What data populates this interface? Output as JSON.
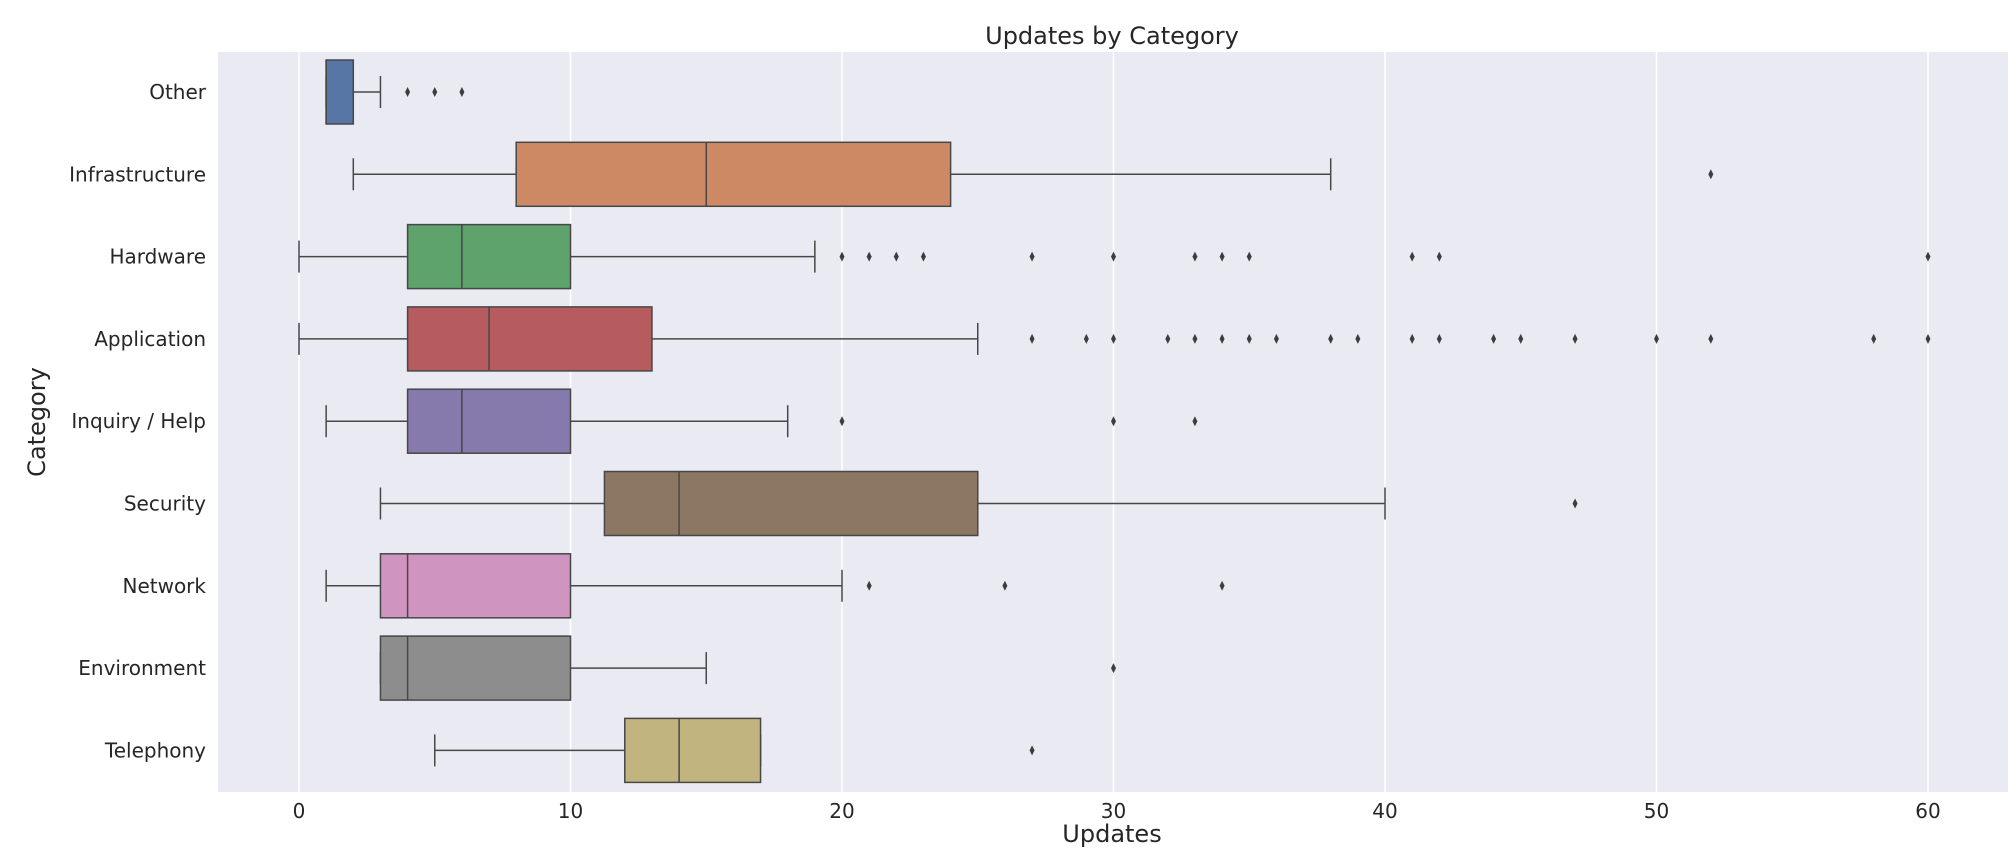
{
  "chart_data": {
    "type": "box",
    "orientation": "horizontal",
    "title": "Updates by Category",
    "xlabel": "Updates",
    "ylabel": "Category",
    "xlim": [
      -3,
      63
    ],
    "xticks": [
      0,
      10,
      20,
      30,
      40,
      50,
      60
    ],
    "grid": "vertical",
    "categories": [
      {
        "name": "Other",
        "color": "#5876a5",
        "whislo": 1,
        "q1": 1,
        "med": 1,
        "q3": 2,
        "whishi": 3,
        "fliers": [
          4,
          5,
          6
        ]
      },
      {
        "name": "Infrastructure",
        "color": "#cc8963",
        "whislo": 2,
        "q1": 8,
        "med": 15,
        "q3": 24,
        "whishi": 38,
        "fliers": [
          52
        ]
      },
      {
        "name": "Hardware",
        "color": "#5ea26c",
        "whislo": 0,
        "q1": 4,
        "med": 6,
        "q3": 10,
        "whishi": 19,
        "fliers": [
          20,
          21,
          22,
          23,
          27,
          30,
          33,
          34,
          35,
          41,
          42,
          60
        ]
      },
      {
        "name": "Application",
        "color": "#b65c5f",
        "whislo": 0,
        "q1": 4,
        "med": 7,
        "q3": 13,
        "whishi": 25,
        "fliers": [
          27,
          29,
          30,
          32,
          33,
          34,
          35,
          36,
          38,
          39,
          41,
          42,
          44,
          45,
          47,
          50,
          52,
          58,
          60
        ]
      },
      {
        "name": "Inquiry / Help",
        "color": "#857aab",
        "whislo": 1,
        "q1": 4,
        "med": 6,
        "q3": 10,
        "whishi": 18,
        "fliers": [
          20,
          30,
          33
        ]
      },
      {
        "name": "Security",
        "color": "#8c7763",
        "whislo": 3,
        "q1": 11.25,
        "med": 14,
        "q3": 25,
        "whishi": 40,
        "fliers": [
          47
        ]
      },
      {
        "name": "Network",
        "color": "#cf94bf",
        "whislo": 1,
        "q1": 3,
        "med": 4,
        "q3": 10,
        "whishi": 20,
        "fliers": [
          21,
          26,
          34
        ]
      },
      {
        "name": "Environment",
        "color": "#8d8d8d",
        "whislo": 3,
        "q1": 3,
        "med": 4,
        "q3": 10,
        "whishi": 15,
        "fliers": [
          30
        ]
      },
      {
        "name": "Telephony",
        "color": "#c2b47e",
        "whislo": 5,
        "q1": 12,
        "med": 14,
        "q3": 17,
        "whishi": 17,
        "fliers": [
          27
        ]
      }
    ]
  }
}
